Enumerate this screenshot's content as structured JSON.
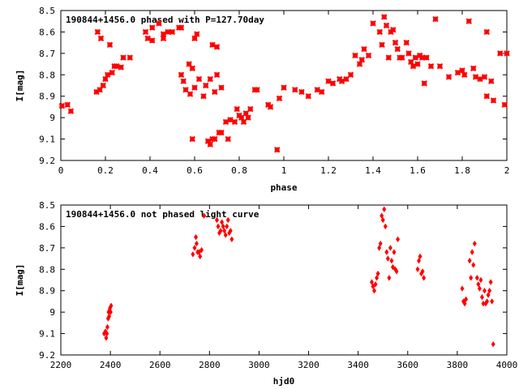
{
  "chart_data": [
    {
      "type": "scatter",
      "title": "190844+1456.0 phased with P=127.70day",
      "xlabel": "phase",
      "ylabel": "I[mag]",
      "xlim": [
        0,
        2
      ],
      "ylim": [
        8.5,
        9.2
      ],
      "y_inverted": true,
      "grid": false,
      "legend": "none",
      "xticks": [
        "0",
        "0.2",
        "0.4",
        "0.6",
        "0.8",
        "1",
        "1.2",
        "1.4",
        "1.6",
        "1.8",
        "2"
      ],
      "yticks": [
        "8.5",
        "8.6",
        "8.7",
        "8.8",
        "8.9",
        "9",
        "9.1",
        "9.2"
      ],
      "marker_color": "#ff0000",
      "points": [
        [
          0.005,
          8.945
        ],
        [
          0.03,
          8.94
        ],
        [
          0.045,
          8.97
        ],
        [
          0.16,
          8.88
        ],
        [
          0.165,
          8.6
        ],
        [
          0.175,
          8.87
        ],
        [
          0.18,
          8.63
        ],
        [
          0.19,
          8.85
        ],
        [
          0.2,
          8.82
        ],
        [
          0.21,
          8.8
        ],
        [
          0.22,
          8.66
        ],
        [
          0.23,
          8.79
        ],
        [
          0.24,
          8.76
        ],
        [
          0.25,
          8.76
        ],
        [
          0.27,
          8.765
        ],
        [
          0.28,
          8.72
        ],
        [
          0.31,
          8.72
        ],
        [
          0.38,
          8.6
        ],
        [
          0.39,
          8.63
        ],
        [
          0.41,
          8.64
        ],
        [
          0.41,
          8.58
        ],
        [
          0.44,
          8.56
        ],
        [
          0.46,
          8.61
        ],
        [
          0.46,
          8.63
        ],
        [
          0.48,
          8.6
        ],
        [
          0.5,
          8.6
        ],
        [
          0.53,
          8.58
        ],
        [
          0.54,
          8.58
        ],
        [
          0.54,
          8.8
        ],
        [
          0.55,
          8.83
        ],
        [
          0.56,
          8.87
        ],
        [
          0.575,
          8.75
        ],
        [
          0.58,
          8.89
        ],
        [
          0.59,
          8.77
        ],
        [
          0.59,
          9.1
        ],
        [
          0.6,
          8.63
        ],
        [
          0.6,
          8.86
        ],
        [
          0.61,
          8.61
        ],
        [
          0.62,
          8.82
        ],
        [
          0.64,
          8.9
        ],
        [
          0.65,
          8.85
        ],
        [
          0.66,
          9.11
        ],
        [
          0.67,
          9.125
        ],
        [
          0.67,
          8.82
        ],
        [
          0.68,
          9.1
        ],
        [
          0.68,
          8.66
        ],
        [
          0.69,
          9.1
        ],
        [
          0.69,
          8.88
        ],
        [
          0.7,
          8.67
        ],
        [
          0.7,
          8.8
        ],
        [
          0.71,
          9.07
        ],
        [
          0.72,
          9.07
        ],
        [
          0.72,
          8.86
        ],
        [
          0.74,
          9.02
        ],
        [
          0.75,
          9.1
        ],
        [
          0.76,
          9.01
        ],
        [
          0.78,
          9.02
        ],
        [
          0.79,
          8.96
        ],
        [
          0.8,
          8.99
        ],
        [
          0.81,
          9.0
        ],
        [
          0.82,
          9.02
        ],
        [
          0.83,
          8.98
        ],
        [
          0.84,
          9.0
        ],
        [
          0.85,
          8.96
        ],
        [
          0.87,
          8.87
        ],
        [
          0.88,
          8.87
        ],
        [
          0.93,
          8.94
        ],
        [
          0.94,
          8.95
        ],
        [
          0.97,
          9.15
        ],
        [
          0.98,
          8.91
        ],
        [
          1.0,
          8.86
        ],
        [
          1.05,
          8.87
        ],
        [
          1.08,
          8.88
        ],
        [
          1.11,
          8.9
        ],
        [
          1.15,
          8.87
        ],
        [
          1.17,
          8.88
        ],
        [
          1.2,
          8.83
        ],
        [
          1.22,
          8.84
        ],
        [
          1.25,
          8.82
        ],
        [
          1.26,
          8.83
        ],
        [
          1.28,
          8.82
        ],
        [
          1.3,
          8.8
        ],
        [
          1.32,
          8.71
        ],
        [
          1.34,
          8.75
        ],
        [
          1.35,
          8.73
        ],
        [
          1.36,
          8.68
        ],
        [
          1.38,
          8.71
        ],
        [
          1.4,
          8.56
        ],
        [
          1.43,
          8.6
        ],
        [
          1.44,
          8.66
        ],
        [
          1.45,
          8.53
        ],
        [
          1.46,
          8.57
        ],
        [
          1.47,
          8.72
        ],
        [
          1.48,
          8.6
        ],
        [
          1.49,
          8.59
        ],
        [
          1.5,
          8.65
        ],
        [
          1.51,
          8.68
        ],
        [
          1.52,
          8.72
        ],
        [
          1.53,
          8.72
        ],
        [
          1.55,
          8.65
        ],
        [
          1.56,
          8.7
        ],
        [
          1.57,
          8.74
        ],
        [
          1.58,
          8.76
        ],
        [
          1.59,
          8.72
        ],
        [
          1.6,
          8.75
        ],
        [
          1.61,
          8.71
        ],
        [
          1.62,
          8.72
        ],
        [
          1.63,
          8.84
        ],
        [
          1.64,
          8.72
        ],
        [
          1.66,
          8.76
        ],
        [
          1.68,
          8.54
        ],
        [
          1.7,
          8.76
        ],
        [
          1.74,
          8.81
        ],
        [
          1.78,
          8.79
        ],
        [
          1.8,
          8.78
        ],
        [
          1.81,
          8.8
        ],
        [
          1.83,
          8.55
        ],
        [
          1.85,
          8.77
        ],
        [
          1.86,
          8.81
        ],
        [
          1.88,
          8.82
        ],
        [
          1.9,
          8.81
        ],
        [
          1.91,
          8.6
        ],
        [
          1.91,
          8.9
        ],
        [
          1.93,
          8.83
        ],
        [
          1.94,
          8.92
        ],
        [
          1.97,
          8.7
        ],
        [
          1.99,
          8.94
        ],
        [
          2.0,
          8.7
        ]
      ]
    },
    {
      "type": "scatter",
      "title": "190844+1456.0 not phased light curve",
      "xlabel": "hjd0",
      "ylabel": "I[mag]",
      "xlim": [
        2200,
        4000
      ],
      "ylim": [
        8.5,
        9.2
      ],
      "y_inverted": true,
      "grid": false,
      "legend": "none",
      "xticks": [
        "2200",
        "2400",
        "2600",
        "2800",
        "3000",
        "3200",
        "3400",
        "3600",
        "3800",
        "4000"
      ],
      "yticks": [
        "8.5",
        "8.6",
        "8.7",
        "8.8",
        "8.9",
        "9",
        "9.1",
        "9.2"
      ],
      "marker_color": "#ff0000",
      "points": [
        [
          2375,
          9.1
        ],
        [
          2380,
          9.09
        ],
        [
          2383,
          9.12
        ],
        [
          2386,
          9.1
        ],
        [
          2388,
          9.07
        ],
        [
          2391,
          9.03
        ],
        [
          2393,
          9.0
        ],
        [
          2395,
          9.02
        ],
        [
          2397,
          8.99
        ],
        [
          2399,
          8.98
        ],
        [
          2401,
          9.0
        ],
        [
          2403,
          8.97
        ],
        [
          2733,
          8.73
        ],
        [
          2740,
          8.7
        ],
        [
          2745,
          8.65
        ],
        [
          2748,
          8.68
        ],
        [
          2752,
          8.72
        ],
        [
          2758,
          8.72
        ],
        [
          2762,
          8.74
        ],
        [
          2768,
          8.71
        ],
        [
          2778,
          8.55
        ],
        [
          2830,
          8.57
        ],
        [
          2835,
          8.6
        ],
        [
          2840,
          8.63
        ],
        [
          2845,
          8.62
        ],
        [
          2850,
          8.58
        ],
        [
          2855,
          8.6
        ],
        [
          2860,
          8.62
        ],
        [
          2865,
          8.64
        ],
        [
          2870,
          8.6
        ],
        [
          2875,
          8.57
        ],
        [
          2880,
          8.63
        ],
        [
          2885,
          8.62
        ],
        [
          2890,
          8.66
        ],
        [
          3455,
          8.86
        ],
        [
          3460,
          8.88
        ],
        [
          3465,
          8.9
        ],
        [
          3470,
          8.87
        ],
        [
          3475,
          8.84
        ],
        [
          3480,
          8.82
        ],
        [
          3485,
          8.7
        ],
        [
          3490,
          8.68
        ],
        [
          3495,
          8.55
        ],
        [
          3500,
          8.57
        ],
        [
          3505,
          8.52
        ],
        [
          3510,
          8.6
        ],
        [
          3515,
          8.72
        ],
        [
          3520,
          8.75
        ],
        [
          3525,
          8.84
        ],
        [
          3530,
          8.7
        ],
        [
          3535,
          8.76
        ],
        [
          3540,
          8.79
        ],
        [
          3545,
          8.72
        ],
        [
          3550,
          8.8
        ],
        [
          3555,
          8.81
        ],
        [
          3560,
          8.66
        ],
        [
          3640,
          8.8
        ],
        [
          3645,
          8.76
        ],
        [
          3650,
          8.74
        ],
        [
          3655,
          8.82
        ],
        [
          3660,
          8.81
        ],
        [
          3665,
          8.84
        ],
        [
          3820,
          8.89
        ],
        [
          3825,
          8.95
        ],
        [
          3830,
          8.96
        ],
        [
          3835,
          8.94
        ],
        [
          3850,
          8.76
        ],
        [
          3855,
          8.84
        ],
        [
          3860,
          8.72
        ],
        [
          3865,
          8.78
        ],
        [
          3870,
          8.68
        ],
        [
          3880,
          8.84
        ],
        [
          3885,
          8.87
        ],
        [
          3890,
          8.89
        ],
        [
          3895,
          8.85
        ],
        [
          3900,
          8.93
        ],
        [
          3905,
          8.96
        ],
        [
          3910,
          8.9
        ],
        [
          3915,
          8.96
        ],
        [
          3920,
          8.95
        ],
        [
          3925,
          8.92
        ],
        [
          3930,
          8.9
        ],
        [
          3935,
          8.86
        ],
        [
          3940,
          8.95
        ],
        [
          3945,
          9.15
        ]
      ]
    }
  ]
}
